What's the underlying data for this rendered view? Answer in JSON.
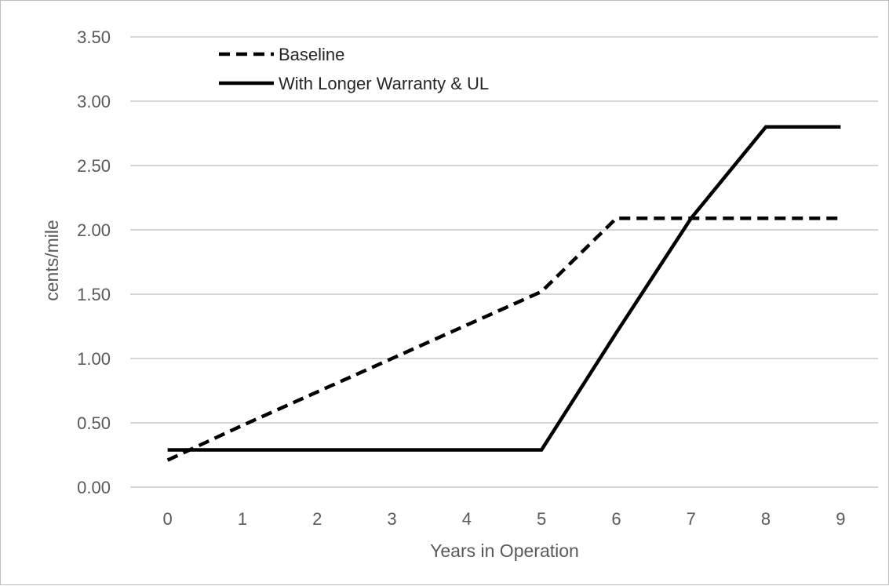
{
  "chart_data": {
    "type": "line",
    "title": "",
    "xlabel": "Years in Operation",
    "ylabel": "cents/mile",
    "x": [
      0,
      1,
      2,
      3,
      4,
      5,
      6,
      7,
      8,
      9
    ],
    "x_tick_labels": [
      "0",
      "1",
      "2",
      "3",
      "4",
      "5",
      "6",
      "7",
      "8",
      "9"
    ],
    "y_tick_labels": [
      "0.00",
      "0.50",
      "1.00",
      "1.50",
      "2.00",
      "2.50",
      "3.00",
      "3.50"
    ],
    "ylim": [
      0,
      3.5
    ],
    "grid": true,
    "legend_position": "top-left",
    "series": [
      {
        "name": "Baseline",
        "style": "dashed",
        "color": "#000000",
        "values": [
          0.21,
          0.48,
          0.74,
          1.0,
          1.26,
          1.52,
          2.09,
          2.09,
          2.09,
          2.09
        ]
      },
      {
        "name": "With Longer Warranty & UL",
        "style": "solid",
        "color": "#000000",
        "values": [
          0.29,
          0.29,
          0.29,
          0.29,
          0.29,
          0.29,
          1.2,
          2.09,
          2.8,
          2.8
        ]
      }
    ]
  }
}
